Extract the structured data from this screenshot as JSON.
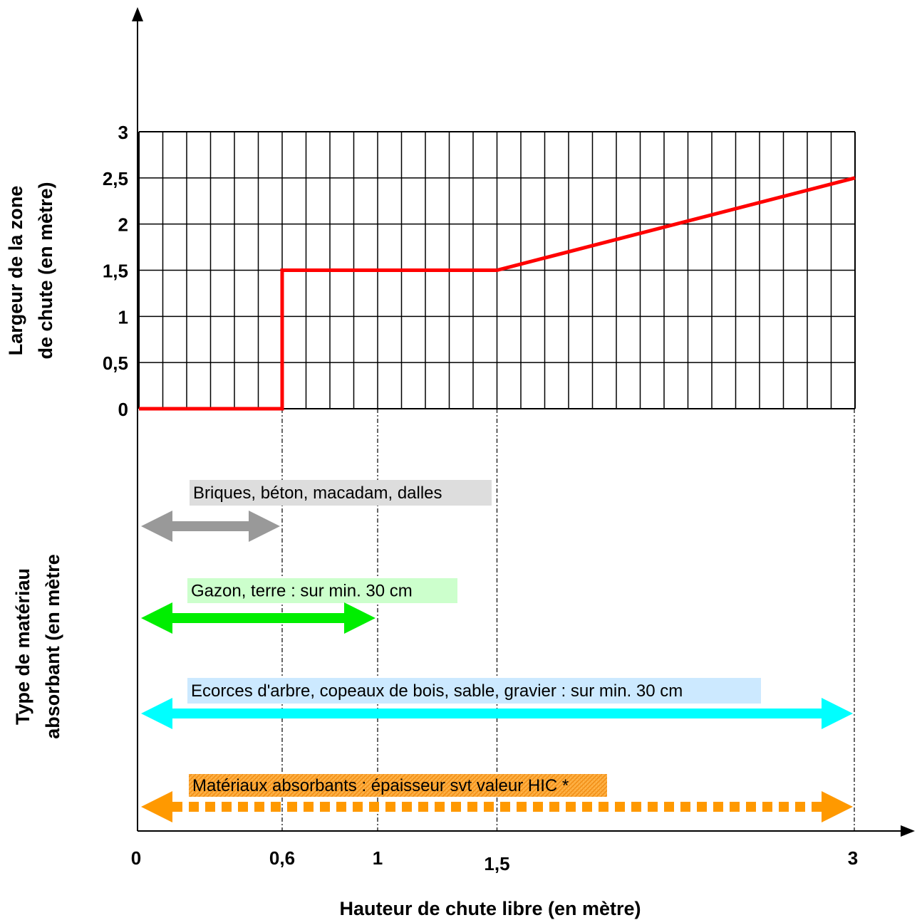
{
  "chart_data": {
    "type": "line",
    "xlabel": "Hauteur de chute libre (en mètre)",
    "ylabel_lines": [
      "Largeur de la zone",
      "de chute (en mètre)"
    ],
    "lower_label_lines": [
      "Type de matériau",
      "absorbant (en mètre"
    ],
    "x_ticks": [
      "0",
      "0,6",
      "1",
      "1,5",
      "3"
    ],
    "y_ticks": [
      "0",
      "0,5",
      "1",
      "1,5",
      "2",
      "2,5",
      "3"
    ],
    "xlim": [
      0,
      3
    ],
    "ylim": [
      0,
      3
    ],
    "grid": true,
    "series": [
      {
        "color": "#ff0000",
        "points": [
          [
            0,
            0
          ],
          [
            0.6,
            0
          ],
          [
            0.6,
            1.5
          ],
          [
            1.5,
            1.5
          ],
          [
            3,
            2.5
          ]
        ]
      }
    ],
    "materials": [
      {
        "label": "Briques, béton, macadam, dalles",
        "range": [
          0,
          0.6
        ],
        "color": "#999999",
        "bg": "#dddddd",
        "style": "solid"
      },
      {
        "label": "Gazon, terre : sur min. 30 cm",
        "range": [
          0,
          1
        ],
        "color": "#00ee00",
        "bg": "#ccffcc",
        "style": "solid"
      },
      {
        "label": "Ecorces d'arbre, copeaux de bois, sable, gravier : sur min. 30 cm",
        "range": [
          0,
          3
        ],
        "color": "#00ffff",
        "bg": "#cce9ff",
        "style": "solid"
      },
      {
        "label": "Matériaux absorbants : épaisseur svt valeur HIC *",
        "range": [
          0,
          3
        ],
        "color": "#ff9900",
        "bg": "#ffb347",
        "style": "dotted"
      }
    ]
  }
}
